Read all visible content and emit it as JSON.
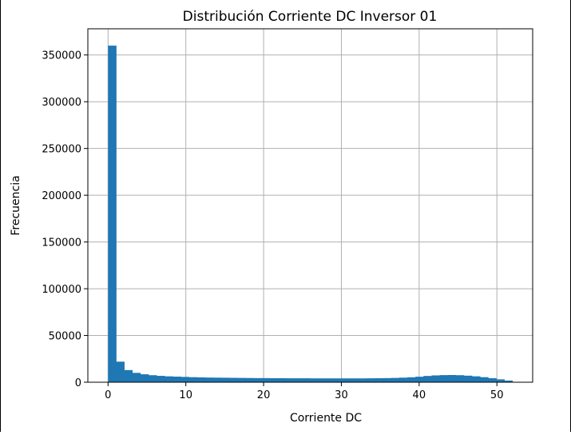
{
  "chart_data": {
    "type": "bar",
    "title": "Distribución Corriente DC Inversor 01",
    "xlabel": "Corriente DC",
    "ylabel": "Frecuencia",
    "xlim": [
      -2.6,
      54.6
    ],
    "ylim": [
      0,
      378000
    ],
    "xticks": [
      0,
      10,
      20,
      30,
      40,
      50
    ],
    "yticks": [
      0,
      50000,
      100000,
      150000,
      200000,
      250000,
      300000,
      350000
    ],
    "grid": true,
    "bar_color": "#1f77b4",
    "bin_start": 0,
    "bin_width": 1.04,
    "values": [
      360000,
      22000,
      13000,
      10000,
      8500,
      7500,
      6800,
      6300,
      6000,
      5700,
      5400,
      5200,
      5000,
      4900,
      4800,
      4700,
      4600,
      4500,
      4400,
      4400,
      4300,
      4300,
      4200,
      4200,
      4200,
      4100,
      4100,
      4100,
      4100,
      4100,
      4100,
      4100,
      4200,
      4300,
      4400,
      4600,
      4900,
      5300,
      5900,
      6700,
      7300,
      7600,
      7700,
      7500,
      7000,
      6300,
      5400,
      4300,
      3100,
      1800
    ]
  }
}
